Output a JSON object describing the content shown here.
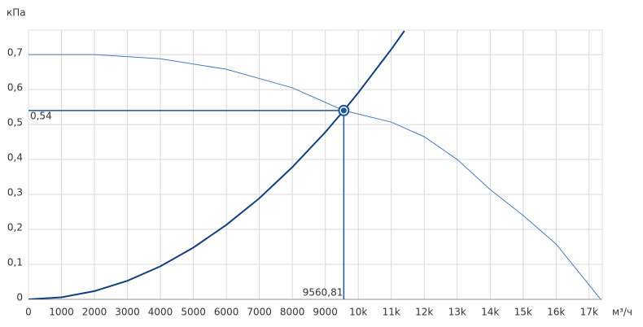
{
  "chart_data": {
    "type": "line",
    "y_unit": "кПа",
    "x_unit": "м³/ч",
    "xlim": [
      0,
      17400
    ],
    "ylim": [
      0,
      0.77
    ],
    "grid": true,
    "xticks": [
      0,
      1000,
      2000,
      3000,
      4000,
      5000,
      6000,
      7000,
      8000,
      9000,
      {
        "value": 10000,
        "label": "10k"
      },
      {
        "value": 11000,
        "label": "11k"
      },
      {
        "value": 12000,
        "label": "12k"
      },
      {
        "value": 13000,
        "label": "13k"
      },
      {
        "value": 14000,
        "label": "14k"
      },
      {
        "value": 15000,
        "label": "15k"
      },
      {
        "value": 16000,
        "label": "16k"
      },
      {
        "value": 17000,
        "label": "17k"
      }
    ],
    "yticks": [
      0,
      {
        "value": 0.1,
        "label": "0,1"
      },
      {
        "value": 0.2,
        "label": "0,2"
      },
      {
        "value": 0.3,
        "label": "0,3"
      },
      {
        "value": 0.4,
        "label": "0,4"
      },
      {
        "value": 0.5,
        "label": "0,5"
      },
      {
        "value": 0.6,
        "label": "0,6"
      },
      {
        "value": 0.7,
        "label": "0,7"
      }
    ],
    "series": [
      {
        "color": "#4a7bb8",
        "width": 1,
        "x": [
          0,
          2000,
          4000,
          6000,
          8000,
          9560.81,
          11000,
          12000,
          13000,
          14000,
          15000,
          16000,
          17350
        ],
        "values": [
          0.7,
          0.7,
          0.688,
          0.658,
          0.605,
          0.54,
          0.507,
          0.465,
          0.4,
          0.314,
          0.24,
          0.158,
          0
        ]
      },
      {
        "color": "#13417f",
        "width": 2,
        "x": [
          0,
          1000,
          2000,
          3000,
          4000,
          5000,
          6000,
          7000,
          8000,
          9000,
          9560.81,
          10000,
          11000,
          11400
        ],
        "values": [
          0,
          0.0059,
          0.0236,
          0.053,
          0.0945,
          0.148,
          0.213,
          0.289,
          0.378,
          0.478,
          0.54,
          0.591,
          0.715,
          0.768
        ]
      }
    ],
    "operating_point": {
      "x": 9560.81,
      "y": 0.54,
      "x_label": "9560,81",
      "y_label": "0,54",
      "color": "#1f5596"
    }
  }
}
